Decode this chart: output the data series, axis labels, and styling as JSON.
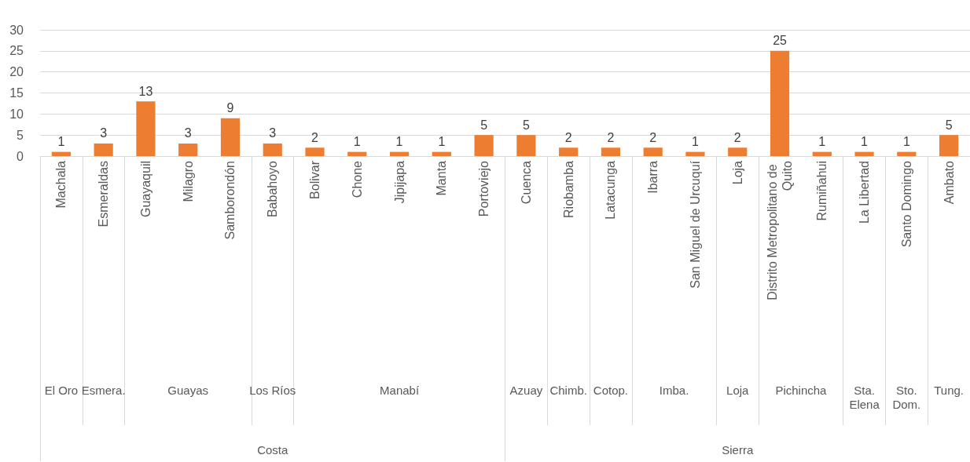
{
  "chart_data": {
    "type": "bar",
    "categories": [
      "Machala",
      "Esmeraldas",
      "Guayaquil",
      "Milagro",
      "Samborondón",
      "Babahoyo",
      "Bolivar",
      "Chone",
      "Jipijapa",
      "Manta",
      "Portoviejo",
      "Cuenca",
      "Riobamba",
      "Latacunga",
      "Ibarra",
      "San Miguel de Urcuquí",
      "Loja",
      "Distrito Metropolitano de Quito",
      "Rumiñahui",
      "La Libertad",
      "Santo Domingo",
      "Ambato"
    ],
    "values": [
      1,
      3,
      13,
      3,
      9,
      3,
      2,
      1,
      1,
      1,
      5,
      5,
      2,
      2,
      2,
      1,
      2,
      25,
      1,
      1,
      1,
      5
    ],
    "color": "#ed7d31",
    "ylim": [
      0,
      30
    ],
    "yticks": [
      0,
      5,
      10,
      15,
      20,
      25,
      30
    ],
    "grid": "y",
    "data_labels": true,
    "annotations": [
      "El Oro",
      "Esmera.",
      "Guayas",
      "Los Ríos",
      "Manabí",
      "Azuay",
      "Chimb.",
      "Cotop.",
      "Imba.",
      "Loja",
      "Pichincha",
      "Sta. Elena",
      "Sto. Dom.",
      "Tung.",
      "Costa",
      "Sierra"
    ]
  }
}
